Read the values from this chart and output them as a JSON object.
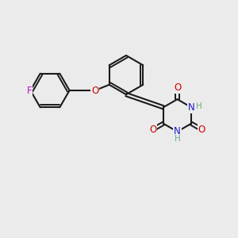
{
  "bg_color": "#ebebeb",
  "bond_color": "#1a1a1a",
  "atom_colors": {
    "O": "#cc0000",
    "N": "#1a1acc",
    "F": "#cc00cc",
    "H": "#6aaa88"
  },
  "figsize": [
    3.0,
    3.0
  ],
  "dpi": 100
}
